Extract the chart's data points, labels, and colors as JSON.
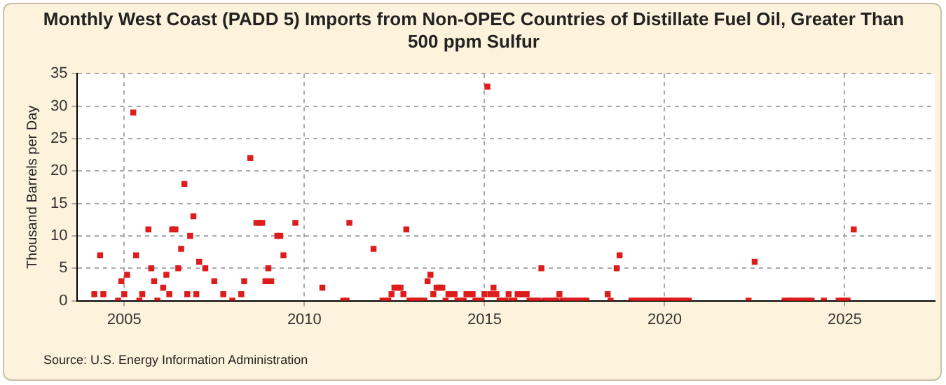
{
  "chart_data": {
    "type": "scatter",
    "title": "Monthly West Coast (PADD 5) Imports from Non-OPEC Countries of Distillate Fuel Oil, Greater Than 500 ppm Sulfur",
    "ylabel": "Thousand Barrels per Day",
    "annotations": [
      "Source: U.S. Energy Information Administration"
    ],
    "xlim": [
      2003.7,
      2027.5
    ],
    "xticks": [
      2005,
      2010,
      2015,
      2020,
      2025
    ],
    "ylim": [
      0,
      35
    ],
    "yticks": [
      0,
      5,
      10,
      15,
      20,
      25,
      30,
      35
    ],
    "grid": true,
    "marker": "square",
    "series": [
      {
        "color": "#dd1c1c",
        "x": [
          2004.17,
          2004.33,
          2004.42,
          2004.83,
          2004.92,
          2005.0,
          2005.08,
          2005.25,
          2005.33,
          2005.42,
          2005.5,
          2005.67,
          2005.75,
          2005.83,
          2005.92,
          2006.08,
          2006.17,
          2006.25,
          2006.33,
          2006.42,
          2006.5,
          2006.58,
          2006.67,
          2006.75,
          2006.83,
          2006.92,
          2007.0,
          2007.08,
          2007.25,
          2007.5,
          2007.75,
          2008.0,
          2008.25,
          2008.33,
          2008.5,
          2008.67,
          2008.75,
          2008.83,
          2008.92,
          2009.0,
          2009.08,
          2009.25,
          2009.33,
          2009.42,
          2009.75,
          2010.5,
          2011.08,
          2011.17,
          2011.25,
          2011.92,
          2012.17,
          2012.25,
          2012.33,
          2012.42,
          2012.5,
          2012.58,
          2012.67,
          2012.75,
          2012.83,
          2012.92,
          2013.0,
          2013.08,
          2013.17,
          2013.25,
          2013.33,
          2013.42,
          2013.5,
          2013.58,
          2013.67,
          2013.75,
          2013.83,
          2013.92,
          2014.0,
          2014.08,
          2014.17,
          2014.25,
          2014.33,
          2014.42,
          2014.5,
          2014.58,
          2014.67,
          2014.75,
          2014.83,
          2014.92,
          2015.0,
          2015.08,
          2015.17,
          2015.25,
          2015.33,
          2015.42,
          2015.5,
          2015.58,
          2015.67,
          2015.75,
          2015.83,
          2015.92,
          2016.0,
          2016.08,
          2016.17,
          2016.25,
          2016.33,
          2016.42,
          2016.5,
          2016.58,
          2016.67,
          2016.75,
          2016.83,
          2016.92,
          2017.0,
          2017.08,
          2017.17,
          2017.25,
          2017.33,
          2017.42,
          2017.5,
          2017.58,
          2017.67,
          2017.75,
          2017.83,
          2018.42,
          2018.5,
          2018.67,
          2018.75,
          2019.08,
          2019.17,
          2019.25,
          2019.33,
          2019.42,
          2019.5,
          2019.58,
          2019.67,
          2019.75,
          2019.83,
          2019.92,
          2020.0,
          2020.08,
          2020.17,
          2020.25,
          2020.33,
          2020.42,
          2020.5,
          2020.58,
          2020.67,
          2022.33,
          2022.5,
          2023.33,
          2023.42,
          2023.5,
          2023.58,
          2023.67,
          2023.75,
          2023.83,
          2023.92,
          2024.0,
          2024.08,
          2024.42,
          2024.83,
          2024.92,
          2025.0,
          2025.08,
          2025.25
        ],
        "values": [
          1,
          7,
          1,
          0,
          3,
          1,
          4,
          29,
          7,
          0,
          1,
          11,
          5,
          3,
          0,
          2,
          4,
          1,
          11,
          11,
          5,
          8,
          18,
          1,
          10,
          13,
          1,
          6,
          5,
          3,
          1,
          0,
          1,
          3,
          22,
          12,
          12,
          12,
          3,
          5,
          3,
          10,
          10,
          7,
          12,
          2,
          0,
          0,
          12,
          8,
          0,
          0,
          0,
          1,
          2,
          2,
          2,
          1,
          11,
          0,
          0,
          0,
          0,
          0,
          0,
          3,
          4,
          1,
          2,
          2,
          2,
          0,
          1,
          1,
          1,
          0,
          0,
          0,
          1,
          1,
          1,
          0,
          0,
          0,
          1,
          33,
          1,
          2,
          1,
          0,
          0,
          0,
          1,
          0,
          0,
          1,
          1,
          1,
          1,
          0,
          0,
          0,
          0,
          5,
          0,
          0,
          0,
          0,
          0,
          1,
          0,
          0,
          0,
          0,
          0,
          0,
          0,
          0,
          0,
          1,
          0,
          5,
          7,
          0,
          0,
          0,
          0,
          0,
          0,
          0,
          0,
          0,
          0,
          0,
          0,
          0,
          0,
          0,
          0,
          0,
          0,
          0,
          0,
          0,
          6,
          0,
          0,
          0,
          0,
          0,
          0,
          0,
          0,
          0,
          0,
          0,
          0,
          0,
          0,
          0,
          11
        ]
      }
    ]
  }
}
